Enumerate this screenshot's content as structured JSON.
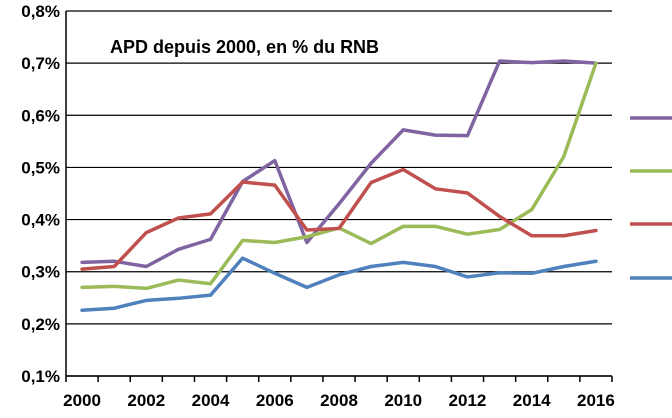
{
  "chart_data": {
    "type": "line",
    "title": "APD depuis 2000, en % du RNB",
    "xlabel": "",
    "ylabel": "",
    "x": [
      2000,
      2001,
      2002,
      2003,
      2004,
      2005,
      2006,
      2007,
      2008,
      2009,
      2010,
      2011,
      2012,
      2013,
      2014,
      2015,
      2016
    ],
    "xticks": [
      2000,
      2002,
      2004,
      2006,
      2008,
      2010,
      2012,
      2014,
      2016
    ],
    "xtick_labels": [
      "2000",
      "2002",
      "2004",
      "2006",
      "2008",
      "2010",
      "2012",
      "2014",
      "2016"
    ],
    "ylim": [
      0.1,
      0.8
    ],
    "yticks": [
      0.1,
      0.2,
      0.3,
      0.4,
      0.5,
      0.6,
      0.7,
      0.8
    ],
    "ytick_labels": [
      "0,1%",
      "0,2%",
      "0,3%",
      "0,4%",
      "0,5%",
      "0,6%",
      "0,7%",
      "0,8%"
    ],
    "grid": "horizontal",
    "legend": "right, markers only",
    "series": [
      {
        "color": "#8064A2",
        "values": [
          0.318,
          0.32,
          0.31,
          0.343,
          0.362,
          0.473,
          0.513,
          0.356,
          0.43,
          0.508,
          0.572,
          0.562,
          0.561,
          0.704,
          0.701,
          0.704,
          0.7
        ]
      },
      {
        "color": "#9BBB59",
        "values": [
          0.27,
          0.272,
          0.268,
          0.284,
          0.277,
          0.36,
          0.356,
          0.367,
          0.384,
          0.354,
          0.387,
          0.387,
          0.372,
          0.381,
          0.419,
          0.521,
          0.7
        ]
      },
      {
        "color": "#C0504D",
        "values": [
          0.305,
          0.31,
          0.375,
          0.403,
          0.411,
          0.472,
          0.466,
          0.38,
          0.383,
          0.471,
          0.496,
          0.459,
          0.451,
          0.406,
          0.369,
          0.369,
          0.379
        ]
      },
      {
        "color": "#4F81BD",
        "values": [
          0.226,
          0.23,
          0.245,
          0.249,
          0.255,
          0.326,
          0.297,
          0.27,
          0.294,
          0.31,
          0.318,
          0.31,
          0.29,
          0.298,
          0.297,
          0.31,
          0.32
        ]
      }
    ]
  }
}
